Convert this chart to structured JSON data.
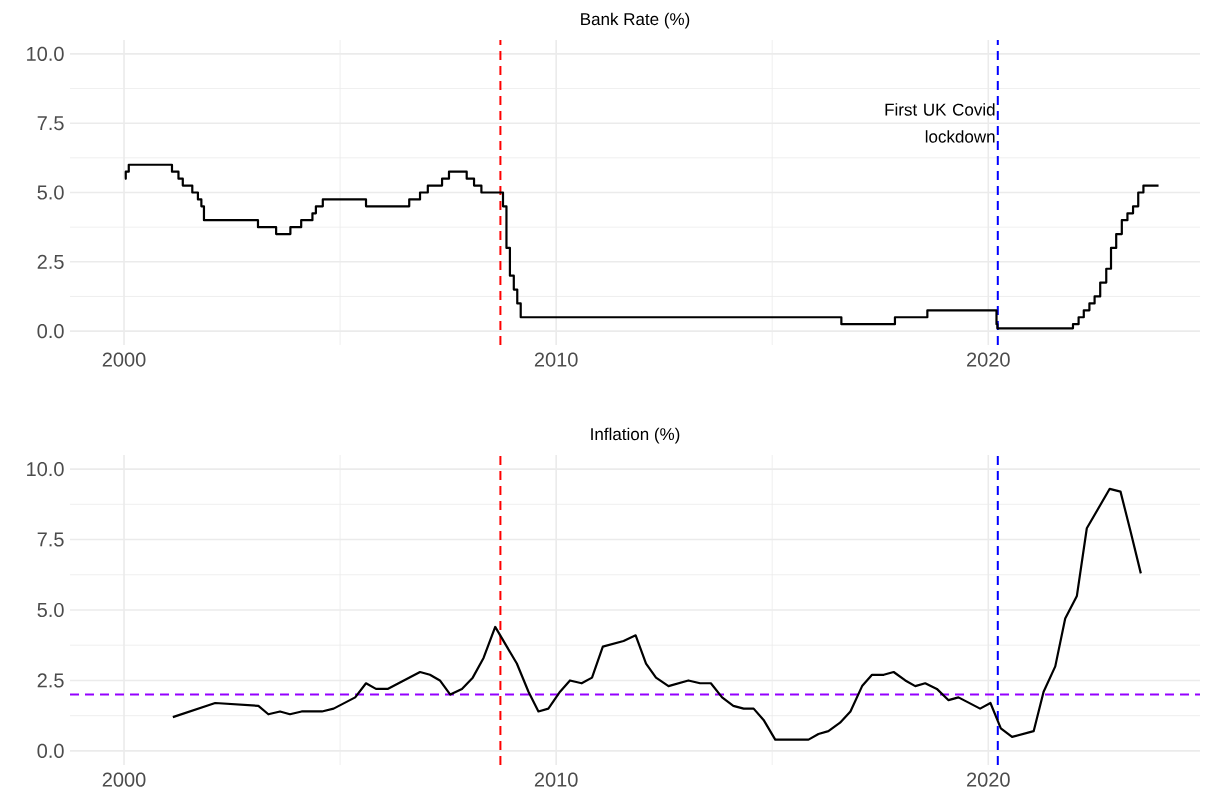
{
  "chart_data": [
    {
      "type": "step",
      "title": "Bank Rate (%)",
      "color": "#000000",
      "grid": true,
      "x": [
        2000.02,
        2000.04,
        2000.11,
        2001.11,
        2001.26,
        2001.36,
        2001.58,
        2001.71,
        2001.79,
        2001.85,
        2003.1,
        2003.52,
        2003.85,
        2004.1,
        2004.36,
        2004.44,
        2004.6,
        2005.6,
        2006.6,
        2006.85,
        2007.03,
        2007.36,
        2007.52,
        2007.93,
        2008.1,
        2008.27,
        2008.77,
        2008.85,
        2008.93,
        2009.02,
        2009.1,
        2009.18,
        2016.6,
        2017.84,
        2018.59,
        2020.19,
        2020.21,
        2021.96,
        2022.09,
        2022.21,
        2022.34,
        2022.46,
        2022.59,
        2022.73,
        2022.84,
        2022.96,
        2023.09,
        2023.22,
        2023.35,
        2023.47,
        2023.59,
        2023.94
      ],
      "values": [
        5.5,
        5.75,
        6.0,
        5.75,
        5.5,
        5.25,
        5.0,
        4.75,
        4.5,
        4.0,
        3.75,
        3.5,
        3.75,
        4.0,
        4.25,
        4.5,
        4.75,
        4.5,
        4.75,
        5.0,
        5.25,
        5.5,
        5.75,
        5.5,
        5.25,
        5.0,
        4.5,
        3.0,
        2.0,
        1.5,
        1.0,
        0.5,
        0.25,
        0.5,
        0.75,
        0.25,
        0.1,
        0.25,
        0.5,
        0.75,
        1.0,
        1.25,
        1.75,
        2.25,
        3.0,
        3.5,
        4.0,
        4.25,
        4.5,
        5.0,
        5.25,
        5.25
      ],
      "xlim": [
        1998.75,
        2024.9
      ],
      "xticks": [
        2000,
        2010,
        2020
      ],
      "ylim": [
        -0.5,
        10.5
      ],
      "yticks": [
        {
          "value": 0,
          "label": "0.0"
        },
        {
          "value": 2.5,
          "label": "2.5"
        },
        {
          "value": 5,
          "label": "5.0"
        },
        {
          "value": 7.5,
          "label": "7.5"
        },
        {
          "value": 10,
          "label": "10.0"
        }
      ],
      "ref_lines": [
        {
          "axis": "x",
          "value": 2008.71,
          "color": "#ff0000",
          "line_style": "dashed"
        },
        {
          "axis": "x",
          "value": 2020.22,
          "label": "First UK Covid lockdown",
          "color": "#0000ff",
          "line_style": "dashed"
        }
      ]
    },
    {
      "type": "line",
      "title": "Inflation (%)",
      "color": "#000000",
      "grid": true,
      "x": [
        2001.13,
        2002.11,
        2003.11,
        2003.34,
        2003.61,
        2003.84,
        2004.11,
        2004.58,
        2004.85,
        2005.35,
        2005.6,
        2005.83,
        2006.1,
        2006.85,
        2007.08,
        2007.31,
        2007.55,
        2007.82,
        2008.07,
        2008.32,
        2008.59,
        2009.09,
        2009.36,
        2009.59,
        2009.82,
        2010.09,
        2010.32,
        2010.59,
        2010.83,
        2011.08,
        2011.56,
        2011.84,
        2012.08,
        2012.31,
        2012.6,
        2013.06,
        2013.33,
        2013.58,
        2013.84,
        2014.1,
        2014.34,
        2014.57,
        2014.8,
        2015.07,
        2015.84,
        2016.07,
        2016.3,
        2016.57,
        2016.81,
        2017.08,
        2017.31,
        2017.58,
        2017.81,
        2018.08,
        2018.31,
        2018.54,
        2018.81,
        2019.08,
        2019.31,
        2019.81,
        2020.05,
        2020.29,
        2020.55,
        2021.05,
        2021.28,
        2021.55,
        2021.78,
        2022.05,
        2022.28,
        2022.81,
        2023.06,
        2023.29,
        2023.53
      ],
      "values": [
        1.2,
        1.7,
        1.6,
        1.3,
        1.4,
        1.3,
        1.4,
        1.4,
        1.5,
        1.9,
        2.4,
        2.2,
        2.2,
        2.8,
        2.7,
        2.5,
        2.0,
        2.2,
        2.6,
        3.3,
        4.4,
        3.1,
        2.1,
        1.4,
        1.5,
        2.1,
        2.5,
        2.4,
        2.6,
        3.7,
        3.9,
        4.1,
        3.1,
        2.6,
        2.3,
        2.5,
        2.4,
        2.4,
        1.9,
        1.6,
        1.5,
        1.5,
        1.1,
        0.4,
        0.4,
        0.6,
        0.7,
        1.0,
        1.4,
        2.3,
        2.7,
        2.7,
        2.8,
        2.5,
        2.3,
        2.4,
        2.2,
        1.8,
        1.9,
        1.5,
        1.7,
        0.8,
        0.5,
        0.7,
        2.1,
        3.0,
        4.7,
        5.5,
        7.9,
        9.3,
        9.2,
        7.8,
        6.3
      ],
      "xlim": [
        1998.75,
        2024.9
      ],
      "xticks": [
        2000,
        2010,
        2020
      ],
      "ylim": [
        -0.5,
        10.5
      ],
      "yticks": [
        {
          "value": 0,
          "label": "0.0"
        },
        {
          "value": 2.5,
          "label": "2.5"
        },
        {
          "value": 5,
          "label": "5.0"
        },
        {
          "value": 7.5,
          "label": "7.5"
        },
        {
          "value": 10,
          "label": "10.0"
        }
      ],
      "ref_lines": [
        {
          "axis": "x",
          "value": 2008.71,
          "color": "#ff0000",
          "line_style": "dashed"
        },
        {
          "axis": "x",
          "value": 2020.22,
          "color": "#0000ff",
          "line_style": "dashed"
        },
        {
          "axis": "y",
          "value": 2,
          "color": "#9400ff",
          "line_style": "dashed"
        }
      ]
    }
  ]
}
